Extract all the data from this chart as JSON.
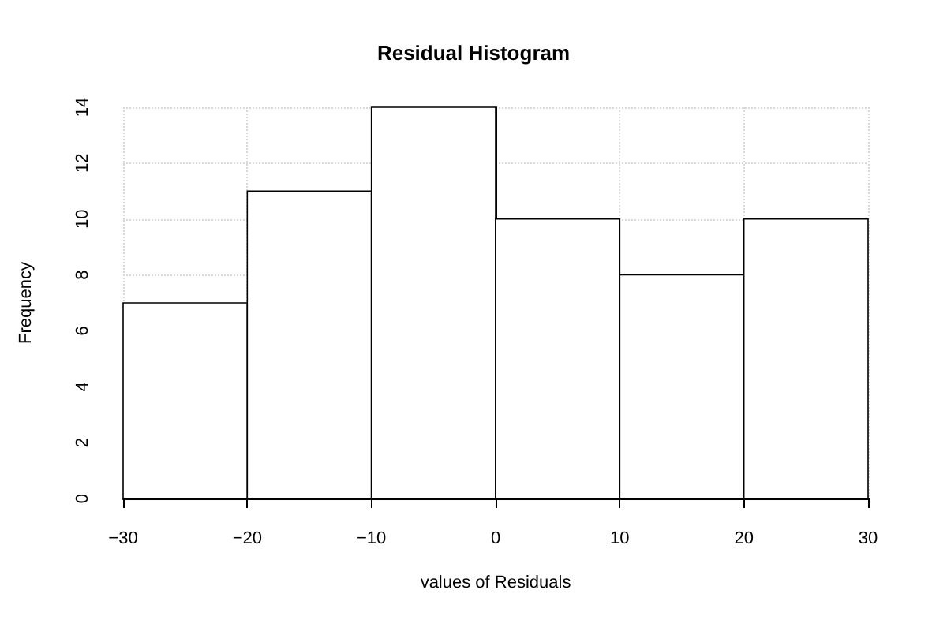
{
  "chart_data": {
    "type": "histogram",
    "title": "Residual Histogram",
    "xlabel": "values of Residuals",
    "ylabel": "Frequency",
    "bins": [
      -30,
      -20,
      -10,
      0,
      10,
      20,
      30
    ],
    "values": [
      7,
      11,
      14,
      10,
      8,
      10
    ],
    "color": "#ffffff",
    "xlim": [
      -30,
      30
    ],
    "xticks": [
      -30,
      -20,
      -10,
      0,
      10,
      20,
      30
    ],
    "ylim": [
      0,
      14
    ],
    "yticks": [
      0,
      2,
      4,
      6,
      8,
      10,
      12,
      14
    ],
    "grid": true
  }
}
